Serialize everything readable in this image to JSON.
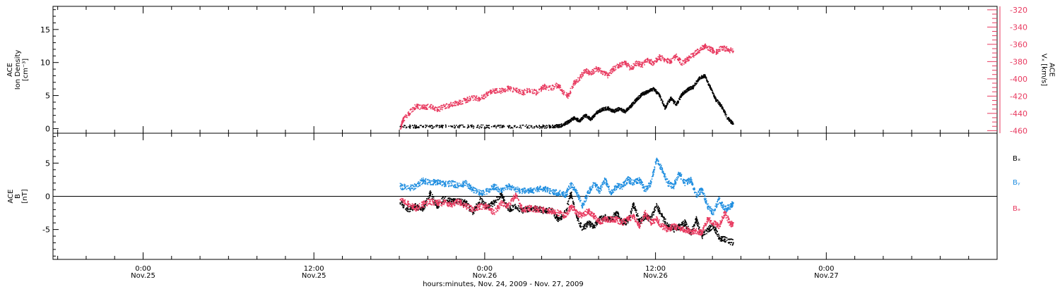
{
  "figure": {
    "xlabel": "hours:minutes, Nov. 24, 2009 - Nov. 27, 2009",
    "xlim": [
      0,
      66.33
    ],
    "x_ticks": [
      {
        "x": 6.33,
        "time": "0:00",
        "day": "Nov.25"
      },
      {
        "x": 18.33,
        "time": "12:00",
        "day": "Nov.25"
      },
      {
        "x": 30.33,
        "time": "0:00",
        "day": "Nov.26"
      },
      {
        "x": 42.33,
        "time": "12:00",
        "day": "Nov.26"
      },
      {
        "x": 54.33,
        "time": "0:00",
        "day": "Nov.27"
      }
    ]
  },
  "chart_data": [
    {
      "type": "scatter",
      "panel": "top",
      "ylabel": [
        "ACE",
        "Ion Density",
        "[cm⁻³]"
      ],
      "ylim": [
        -0.7,
        18.5
      ],
      "y_ticks": [
        0,
        5,
        10,
        15
      ],
      "y2label": [
        "ACE",
        "Vₓ [km/s]"
      ],
      "y2lim": [
        -463,
        -316
      ],
      "y2_ticks": [
        -320,
        -340,
        -360,
        -380,
        -400,
        -420,
        -440,
        -460
      ],
      "series": [
        {
          "axis": "left",
          "color": "#000000",
          "x": [
            24.4,
            26.0,
            28.0,
            30.0,
            32.0,
            34.0,
            35.2,
            35.8,
            36.2,
            36.6,
            37.0,
            37.4,
            37.8,
            38.2,
            38.6,
            39.0,
            39.4,
            39.8,
            40.2,
            40.6,
            41.0,
            41.4,
            41.8,
            42.2,
            42.6,
            43.0,
            43.4,
            43.8,
            44.2,
            44.6,
            45.0,
            45.4,
            45.8,
            46.2,
            46.6,
            47.0,
            47.4,
            47.8
          ],
          "values": [
            0.3,
            0.3,
            0.3,
            0.3,
            0.3,
            0.3,
            0.3,
            0.5,
            1.0,
            1.6,
            1.2,
            2.0,
            1.4,
            2.4,
            2.9,
            3.1,
            2.6,
            3.0,
            2.6,
            3.4,
            4.4,
            5.2,
            5.6,
            6.0,
            5.1,
            3.1,
            4.6,
            3.6,
            5.2,
            5.9,
            6.3,
            7.6,
            8.0,
            6.1,
            4.3,
            3.3,
            1.6,
            0.7
          ]
        },
        {
          "axis": "right",
          "color": "#e8395f",
          "x": [
            24.4,
            24.6,
            25.0,
            25.5,
            26.0,
            26.5,
            27.0,
            27.5,
            28.0,
            28.5,
            29.0,
            29.5,
            30.0,
            30.5,
            31.0,
            31.5,
            32.0,
            32.5,
            33.0,
            33.5,
            34.0,
            34.5,
            35.0,
            35.5,
            35.8,
            36.2,
            36.6,
            37.0,
            37.4,
            37.8,
            38.2,
            38.6,
            39.0,
            39.4,
            39.8,
            40.2,
            40.6,
            41.0,
            41.4,
            41.8,
            42.2,
            42.6,
            43.0,
            43.4,
            43.8,
            44.2,
            44.6,
            45.0,
            45.4,
            45.8,
            46.2,
            46.6,
            47.0,
            47.4,
            47.8
          ],
          "values": [
            -458,
            -448,
            -440,
            -432,
            -433,
            -432,
            -436,
            -432,
            -430,
            -428,
            -425,
            -422,
            -423,
            -418,
            -414,
            -414,
            -411,
            -413,
            -416,
            -413,
            -416,
            -409,
            -411,
            -407,
            -415,
            -420,
            -405,
            -399,
            -390,
            -394,
            -388,
            -392,
            -396,
            -388,
            -384,
            -382,
            -388,
            -382,
            -384,
            -378,
            -382,
            -375,
            -378,
            -380,
            -374,
            -382,
            -377,
            -372,
            -367,
            -362,
            -366,
            -369,
            -364,
            -366,
            -368
          ]
        }
      ]
    },
    {
      "type": "scatter",
      "panel": "bottom",
      "ylabel": [
        "ACE",
        "B",
        "[nT]"
      ],
      "ylim": [
        -9.5,
        9.5
      ],
      "y_ticks": [
        -5,
        0,
        5
      ],
      "zero_line": true,
      "series": [
        {
          "name": "Bₓ",
          "color": "#000000",
          "x": [
            24.4,
            25.0,
            25.5,
            26.0,
            26.5,
            27.0,
            27.5,
            28.0,
            28.5,
            29.0,
            29.5,
            30.0,
            30.5,
            31.0,
            31.5,
            32.0,
            32.5,
            33.0,
            33.5,
            34.0,
            34.5,
            35.0,
            35.5,
            36.0,
            36.4,
            36.8,
            37.2,
            37.6,
            38.0,
            38.4,
            38.8,
            39.2,
            39.6,
            40.0,
            40.4,
            40.8,
            41.2,
            41.6,
            42.0,
            42.4,
            42.8,
            43.2,
            43.6,
            44.0,
            44.4,
            44.8,
            45.2,
            45.6,
            46.0,
            46.4,
            46.8,
            47.2,
            47.8
          ],
          "values": [
            -1.0,
            -2.0,
            -1.5,
            -2.0,
            0.5,
            -1.5,
            -0.3,
            -0.8,
            -0.8,
            -1.0,
            -2.5,
            -0.5,
            -1.6,
            -1.0,
            0.3,
            -2.0,
            -1.5,
            -2.2,
            -1.8,
            -1.8,
            -2.2,
            -2.0,
            -3.5,
            -2.5,
            0.5,
            -3.0,
            -5.0,
            -4.0,
            -4.5,
            -3.5,
            -3.2,
            -3.5,
            -2.5,
            -4.0,
            -3.8,
            -1.2,
            -3.8,
            -3.0,
            -3.5,
            -1.5,
            -3.0,
            -4.5,
            -5.0,
            -4.6,
            -4.0,
            -5.6,
            -3.5,
            -6.0,
            -5.0,
            -4.5,
            -6.2,
            -6.5,
            -7.0
          ]
        },
        {
          "name": "Bᵧ",
          "color": "#1f8ee0",
          "x": [
            24.4,
            25.0,
            25.5,
            26.0,
            26.5,
            27.0,
            27.5,
            28.0,
            28.5,
            29.0,
            29.5,
            30.0,
            30.5,
            31.0,
            31.5,
            32.0,
            32.5,
            33.0,
            33.5,
            34.0,
            34.5,
            35.0,
            35.5,
            36.0,
            36.4,
            36.8,
            37.2,
            37.6,
            38.0,
            38.4,
            38.8,
            39.2,
            39.6,
            40.0,
            40.4,
            40.8,
            41.2,
            41.6,
            42.0,
            42.4,
            42.8,
            43.2,
            43.6,
            44.0,
            44.4,
            44.8,
            45.2,
            45.6,
            46.0,
            46.4,
            46.8,
            47.2,
            47.6,
            47.8
          ],
          "values": [
            1.5,
            1.2,
            1.5,
            2.4,
            2.0,
            2.2,
            1.8,
            2.0,
            1.5,
            2.0,
            1.0,
            0.5,
            0.8,
            1.5,
            0.8,
            1.5,
            1.0,
            0.8,
            0.8,
            1.0,
            1.2,
            0.8,
            0.5,
            0.2,
            1.8,
            0.5,
            -1.5,
            0.5,
            2.0,
            0.8,
            2.5,
            0.5,
            1.5,
            1.5,
            2.5,
            2.0,
            2.5,
            1.0,
            2.0,
            5.5,
            4.0,
            2.0,
            1.5,
            3.5,
            2.0,
            2.5,
            0.2,
            1.0,
            -1.5,
            -2.5,
            -0.5,
            -2.0,
            -1.5,
            -1.0
          ]
        },
        {
          "name": "Bₔ",
          "color": "#e8395f",
          "x": [
            24.4,
            25.0,
            25.5,
            26.0,
            26.5,
            27.0,
            27.5,
            28.0,
            28.5,
            29.0,
            29.5,
            30.0,
            30.5,
            31.0,
            31.5,
            32.0,
            32.5,
            33.0,
            33.5,
            34.0,
            34.5,
            35.0,
            35.5,
            36.0,
            36.4,
            36.8,
            37.2,
            37.6,
            38.0,
            38.4,
            38.8,
            39.2,
            39.6,
            40.0,
            40.4,
            40.8,
            41.2,
            41.6,
            42.0,
            42.4,
            42.8,
            43.2,
            43.6,
            44.0,
            44.4,
            44.8,
            45.2,
            45.6,
            46.0,
            46.4,
            46.8,
            47.2,
            47.6,
            47.8
          ],
          "values": [
            -0.5,
            -1.2,
            -1.8,
            -1.2,
            -0.8,
            -1.0,
            -1.0,
            -1.2,
            -0.8,
            -1.5,
            -2.0,
            -1.5,
            -1.5,
            -2.5,
            -1.0,
            -1.5,
            0.2,
            -2.0,
            -1.8,
            -2.0,
            -2.0,
            -2.2,
            -2.5,
            -3.0,
            -1.5,
            -2.5,
            -3.0,
            -2.2,
            -3.0,
            -3.8,
            -3.5,
            -3.5,
            -3.5,
            -4.0,
            -3.5,
            -3.0,
            -4.5,
            -2.5,
            -4.0,
            -3.5,
            -4.5,
            -5.0,
            -4.5,
            -4.8,
            -5.0,
            -5.3,
            -5.2,
            -5.5,
            -3.5,
            -4.0,
            -4.5,
            -2.5,
            -4.2,
            -4.0
          ]
        }
      ]
    }
  ]
}
